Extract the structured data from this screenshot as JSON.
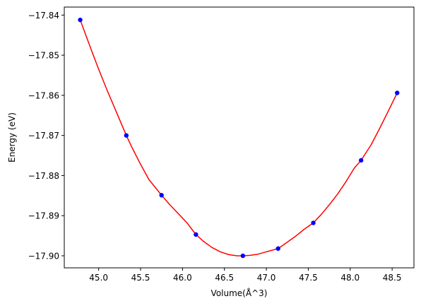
{
  "chart_data": {
    "type": "scatter",
    "title": "",
    "xlabel": "Volume(Å^3)",
    "ylabel": "Energy (eV)",
    "xlim": [
      44.59,
      48.76
    ],
    "ylim": [
      -17.903,
      -17.838
    ],
    "x_ticks": [
      45.0,
      45.5,
      46.0,
      46.5,
      47.0,
      47.5,
      48.0,
      48.5
    ],
    "x_tick_labels": [
      "45.0",
      "45.5",
      "46.0",
      "46.5",
      "47.0",
      "47.5",
      "48.0",
      "48.5"
    ],
    "y_ticks": [
      -17.84,
      -17.85,
      -17.86,
      -17.87,
      -17.88,
      -17.89,
      -17.9
    ],
    "y_tick_labels": [
      "−17.84",
      "−17.85",
      "−17.86",
      "−17.87",
      "−17.88",
      "−17.89",
      "−17.90"
    ],
    "grid": false,
    "series": [
      {
        "type": "scatter",
        "color": "#0000ff",
        "marker": "circle",
        "x": [
          44.78,
          45.33,
          45.75,
          46.16,
          46.72,
          47.14,
          47.56,
          48.13,
          48.56
        ],
        "y": [
          -17.8412,
          -17.87,
          -17.8849,
          -17.8947,
          -17.9,
          -17.8982,
          -17.8918,
          -17.8762,
          -17.8594
        ]
      },
      {
        "type": "line",
        "color": "#ff0000",
        "x": [
          44.78,
          44.9,
          45.0,
          45.1,
          45.2,
          45.33,
          45.4,
          45.5,
          45.6,
          45.75,
          45.85,
          45.95,
          46.05,
          46.16,
          46.25,
          46.35,
          46.45,
          46.55,
          46.65,
          46.72,
          46.8,
          46.9,
          47.0,
          47.14,
          47.25,
          47.35,
          47.45,
          47.56,
          47.65,
          47.75,
          47.85,
          47.95,
          48.05,
          48.13,
          48.25,
          48.35,
          48.45,
          48.56
        ],
        "y": [
          -17.8412,
          -17.848,
          -17.8535,
          -17.8587,
          -17.8636,
          -17.87,
          -17.8731,
          -17.8772,
          -17.881,
          -17.8849,
          -17.8873,
          -17.8895,
          -17.8917,
          -17.8947,
          -17.8964,
          -17.8979,
          -17.899,
          -17.8997,
          -17.9,
          -17.9,
          -17.8999,
          -17.8996,
          -17.899,
          -17.8982,
          -17.8966,
          -17.8951,
          -17.8934,
          -17.8918,
          -17.8898,
          -17.8873,
          -17.8846,
          -17.8815,
          -17.8781,
          -17.8762,
          -17.8723,
          -17.8683,
          -17.8641,
          -17.8594
        ]
      }
    ]
  }
}
